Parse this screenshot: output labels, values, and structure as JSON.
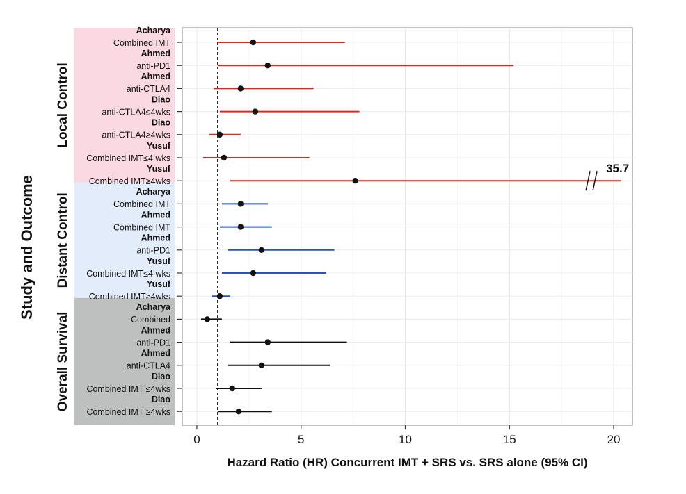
{
  "chart_data": {
    "type": "forest",
    "xlabel": "Hazard Ratio (HR) Concurrent IMT + SRS vs. SRS alone (95% CI)",
    "ylabel": "Study and Outcome",
    "xlim": [
      -0.7,
      20.9
    ],
    "xticks": [
      0,
      5,
      10,
      15,
      20
    ],
    "reference_line": 1,
    "grid": true,
    "groups": [
      {
        "name": "Local Control",
        "color": "#d62a1f",
        "background": "#fbd9e2",
        "row_start": 0,
        "row_end": 6
      },
      {
        "name": "Distant Control",
        "color": "#1f55c4",
        "background": "#e3ecfa",
        "row_start": 7,
        "row_end": 11
      },
      {
        "name": "Overall Survival",
        "color": "#111111",
        "background": "#bdc0bf",
        "row_start": 12,
        "row_end": 16
      }
    ],
    "rows": [
      {
        "study": "Acharya",
        "outcome": "Combined IMT",
        "group": "Local Control",
        "hr": 2.7,
        "lo": 1.0,
        "hi": 7.1
      },
      {
        "study": "Ahmed",
        "outcome": "anti-PD1",
        "group": "Local Control",
        "hr": 3.4,
        "lo": 1.0,
        "hi": 15.2
      },
      {
        "study": "Ahmed",
        "outcome": "anti-CTLA4",
        "group": "Local Control",
        "hr": 2.1,
        "lo": 0.8,
        "hi": 5.6
      },
      {
        "study": "Diao",
        "outcome": "anti-CTLA4≤4wks",
        "group": "Local Control",
        "hr": 2.8,
        "lo": 1.1,
        "hi": 7.8
      },
      {
        "study": "Diao",
        "outcome": "anti-CTLA4≥4wks",
        "group": "Local Control",
        "hr": 1.1,
        "lo": 0.6,
        "hi": 2.1
      },
      {
        "study": "Yusuf",
        "outcome": "Combined IMT≤4 wks",
        "group": "Local Control",
        "hr": 1.3,
        "lo": 0.3,
        "hi": 5.4
      },
      {
        "study": "Yusuf",
        "outcome": "Combined IMT≥4wks",
        "group": "Local Control",
        "hr": 7.6,
        "lo": 1.6,
        "hi": 35.7
      },
      {
        "study": "Acharya",
        "outcome": "Combined IMT",
        "group": "Distant Control",
        "hr": 2.1,
        "lo": 1.2,
        "hi": 3.4
      },
      {
        "study": "Ahmed",
        "outcome": "Combined IMT",
        "group": "Distant Control",
        "hr": 2.1,
        "lo": 1.1,
        "hi": 3.6
      },
      {
        "study": "Ahmed",
        "outcome": "anti-PD1",
        "group": "Distant Control",
        "hr": 3.1,
        "lo": 1.5,
        "hi": 6.6
      },
      {
        "study": "Yusuf",
        "outcome": "Combined IMT≤4 wks",
        "group": "Distant Control",
        "hr": 2.7,
        "lo": 1.2,
        "hi": 6.2
      },
      {
        "study": "Yusuf",
        "outcome": "Combined IMT≥4wks",
        "group": "Distant Control",
        "hr": 1.1,
        "lo": 0.7,
        "hi": 1.6
      },
      {
        "study": "Acharya",
        "outcome": "Combined",
        "group": "Overall Survival",
        "hr": 0.5,
        "lo": 0.2,
        "hi": 1.2
      },
      {
        "study": "Ahmed",
        "outcome": "anti-PD1",
        "group": "Overall Survival",
        "hr": 3.4,
        "lo": 1.6,
        "hi": 7.2
      },
      {
        "study": "Ahmed",
        "outcome": "anti-CTLA4",
        "group": "Overall Survival",
        "hr": 3.1,
        "lo": 1.5,
        "hi": 6.4
      },
      {
        "study": "Diao",
        "outcome": "Combined IMT ≤4wks",
        "group": "Overall Survival",
        "hr": 1.7,
        "lo": 0.9,
        "hi": 3.1
      },
      {
        "study": "Diao",
        "outcome": "Combined IMT ≥4wks",
        "group": "Overall Survival",
        "hr": 2.0,
        "lo": 1.0,
        "hi": 3.6
      }
    ],
    "truncated_annotation": {
      "row": 6,
      "text": "35.7"
    }
  }
}
